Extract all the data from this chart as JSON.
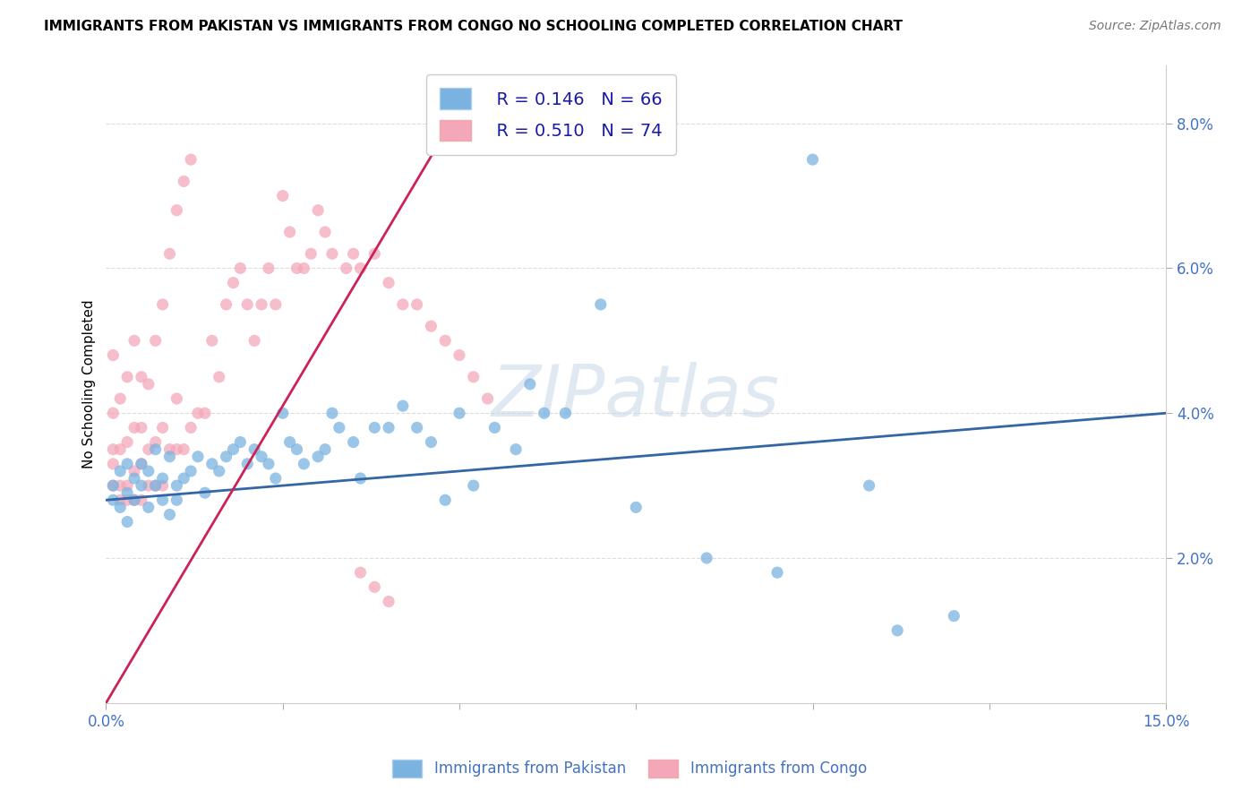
{
  "title": "IMMIGRANTS FROM PAKISTAN VS IMMIGRANTS FROM CONGO NO SCHOOLING COMPLETED CORRELATION CHART",
  "source": "Source: ZipAtlas.com",
  "ylabel": "No Schooling Completed",
  "xlim": [
    0.0,
    0.15
  ],
  "ylim": [
    0.0,
    0.088
  ],
  "legend_r1": "R = 0.146",
  "legend_n1": "N = 66",
  "legend_r2": "R = 0.510",
  "legend_n2": "N = 74",
  "color_pakistan": "#7ab3e0",
  "color_congo": "#f4a7b9",
  "trendline_pakistan_color": "#3465a4",
  "trendline_congo_color": "#cc2255",
  "background_color": "#ffffff",
  "grid_color": "#dddddd",
  "watermark_text": "ZIPatlas",
  "pakistan_x": [
    0.001,
    0.001,
    0.002,
    0.002,
    0.003,
    0.003,
    0.003,
    0.004,
    0.004,
    0.005,
    0.005,
    0.006,
    0.006,
    0.007,
    0.007,
    0.008,
    0.008,
    0.009,
    0.009,
    0.01,
    0.01,
    0.011,
    0.012,
    0.013,
    0.014,
    0.015,
    0.016,
    0.017,
    0.018,
    0.019,
    0.02,
    0.021,
    0.022,
    0.023,
    0.024,
    0.025,
    0.026,
    0.027,
    0.028,
    0.03,
    0.031,
    0.032,
    0.033,
    0.035,
    0.036,
    0.038,
    0.04,
    0.042,
    0.044,
    0.046,
    0.048,
    0.05,
    0.052,
    0.055,
    0.058,
    0.06,
    0.062,
    0.065,
    0.07,
    0.075,
    0.085,
    0.095,
    0.1,
    0.108,
    0.112,
    0.12
  ],
  "pakistan_y": [
    0.03,
    0.028,
    0.027,
    0.032,
    0.029,
    0.025,
    0.033,
    0.031,
    0.028,
    0.03,
    0.033,
    0.027,
    0.032,
    0.03,
    0.035,
    0.028,
    0.031,
    0.026,
    0.034,
    0.028,
    0.03,
    0.031,
    0.032,
    0.034,
    0.029,
    0.033,
    0.032,
    0.034,
    0.035,
    0.036,
    0.033,
    0.035,
    0.034,
    0.033,
    0.031,
    0.04,
    0.036,
    0.035,
    0.033,
    0.034,
    0.035,
    0.04,
    0.038,
    0.036,
    0.031,
    0.038,
    0.038,
    0.041,
    0.038,
    0.036,
    0.028,
    0.04,
    0.03,
    0.038,
    0.035,
    0.044,
    0.04,
    0.04,
    0.055,
    0.027,
    0.02,
    0.018,
    0.075,
    0.03,
    0.01,
    0.012
  ],
  "congo_x": [
    0.001,
    0.001,
    0.001,
    0.001,
    0.001,
    0.002,
    0.002,
    0.002,
    0.002,
    0.003,
    0.003,
    0.003,
    0.003,
    0.004,
    0.004,
    0.004,
    0.004,
    0.005,
    0.005,
    0.005,
    0.005,
    0.006,
    0.006,
    0.006,
    0.007,
    0.007,
    0.007,
    0.008,
    0.008,
    0.008,
    0.009,
    0.009,
    0.01,
    0.01,
    0.01,
    0.011,
    0.011,
    0.012,
    0.012,
    0.013,
    0.014,
    0.015,
    0.016,
    0.017,
    0.018,
    0.019,
    0.02,
    0.021,
    0.022,
    0.023,
    0.024,
    0.025,
    0.026,
    0.027,
    0.028,
    0.029,
    0.03,
    0.031,
    0.032,
    0.034,
    0.035,
    0.036,
    0.038,
    0.04,
    0.042,
    0.044,
    0.046,
    0.048,
    0.05,
    0.052,
    0.054,
    0.036,
    0.038,
    0.04
  ],
  "congo_y": [
    0.03,
    0.033,
    0.035,
    0.04,
    0.048,
    0.028,
    0.03,
    0.035,
    0.042,
    0.028,
    0.03,
    0.036,
    0.045,
    0.028,
    0.032,
    0.038,
    0.05,
    0.028,
    0.033,
    0.038,
    0.045,
    0.03,
    0.035,
    0.044,
    0.03,
    0.036,
    0.05,
    0.03,
    0.038,
    0.055,
    0.035,
    0.062,
    0.035,
    0.042,
    0.068,
    0.035,
    0.072,
    0.038,
    0.075,
    0.04,
    0.04,
    0.05,
    0.045,
    0.055,
    0.058,
    0.06,
    0.055,
    0.05,
    0.055,
    0.06,
    0.055,
    0.07,
    0.065,
    0.06,
    0.06,
    0.062,
    0.068,
    0.065,
    0.062,
    0.06,
    0.062,
    0.06,
    0.062,
    0.058,
    0.055,
    0.055,
    0.052,
    0.05,
    0.048,
    0.045,
    0.042,
    0.018,
    0.016,
    0.014
  ]
}
